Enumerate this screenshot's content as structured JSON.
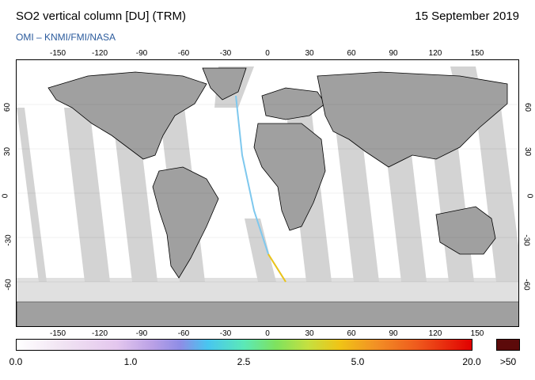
{
  "header": {
    "title": "SO2 vertical column [DU] (TRM)",
    "date": "15 September 2019",
    "subtitle": "OMI  –  KNMI/FMI/NASA"
  },
  "map": {
    "longitude_ticks": [
      "-150",
      "-120",
      "-90",
      "-60",
      "-30",
      "0",
      "30",
      "60",
      "90",
      "120",
      "150"
    ],
    "latitude_ticks": [
      "60",
      "30",
      "0",
      "-30",
      "-60"
    ],
    "colors": {
      "swath_gap": "#d3d3d3",
      "land": "#a0a0a0",
      "ocean": "#ffffff"
    }
  },
  "colorbar": {
    "labels": [
      "0.0",
      "1.0",
      "2.5",
      "5.0",
      "20.0"
    ],
    "over_label": ">50",
    "over_color": "#5c0a0a"
  }
}
